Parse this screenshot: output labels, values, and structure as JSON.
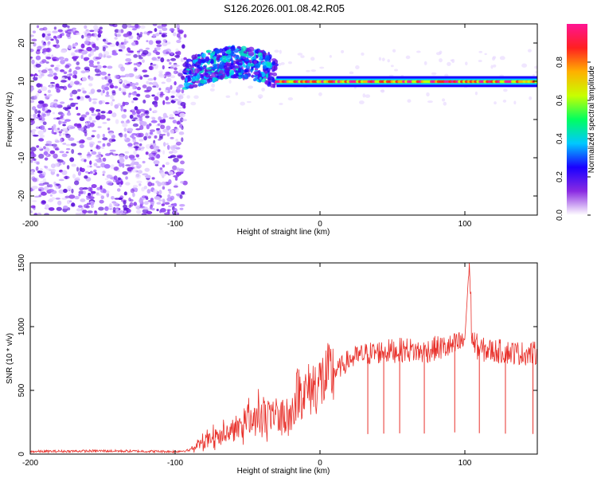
{
  "title": "S126.2026.001.08.42.R05",
  "chart_data": [
    {
      "type": "heatmap",
      "name": "spectrogram",
      "xlabel": "Height of straight line (km)",
      "ylabel": "Frequency (Hz)",
      "xlim": [
        -200,
        150
      ],
      "ylim": [
        -25,
        25
      ],
      "xticks": [
        -200,
        -100,
        0,
        100
      ],
      "yticks": [
        -20,
        -10,
        0,
        10,
        20
      ],
      "colorbar": {
        "label": "Normalized spectral amplitude",
        "range": [
          0,
          1
        ],
        "ticks": [
          "0.0",
          "0.2",
          "0.4",
          "0.6",
          "0.8"
        ],
        "colors": [
          "#ffffff",
          "#8a2be2",
          "#1a00ff",
          "#00c8ff",
          "#00ff60",
          "#c8ff00",
          "#ffb000",
          "#ff2020",
          "#ff1493"
        ]
      },
      "regions": [
        {
          "desc": "noise",
          "x": [
            -200,
            -93
          ],
          "freq": [
            -25,
            25
          ],
          "amplitude": 0.1
        },
        {
          "desc": "broadband signal",
          "x": [
            -93,
            -30
          ],
          "freq": [
            7,
            18
          ],
          "amplitude": 0.3
        },
        {
          "desc": "tone",
          "x": [
            -30,
            150
          ],
          "freq": [
            9.3,
            10.5
          ],
          "amplitude": 0.95
        }
      ]
    },
    {
      "type": "line",
      "name": "snr",
      "xlabel": "Height of straight line (km)",
      "ylabel": "SNR (10 * v/v)",
      "xlim": [
        -200,
        150
      ],
      "ylim": [
        0,
        1500
      ],
      "xticks": [
        -200,
        -100,
        0,
        100
      ],
      "yticks": [
        0,
        500,
        1000,
        1500
      ],
      "color": "#e8302a",
      "series": [
        {
          "name": "SNR",
          "x": [
            -200,
            -150,
            -100,
            -90,
            -80,
            -70,
            -60,
            -50,
            -40,
            -30,
            -20,
            -15,
            -10,
            -5,
            0,
            10,
            20,
            30,
            40,
            50,
            60,
            70,
            80,
            90,
            95,
            100,
            103,
            105,
            110,
            120,
            130,
            140,
            150
          ],
          "values": [
            20,
            25,
            20,
            30,
            100,
            150,
            180,
            250,
            300,
            280,
            320,
            500,
            480,
            530,
            560,
            640,
            740,
            780,
            800,
            810,
            820,
            800,
            830,
            840,
            860,
            900,
            1500,
            900,
            820,
            810,
            800,
            790,
            790
          ]
        }
      ]
    }
  ]
}
